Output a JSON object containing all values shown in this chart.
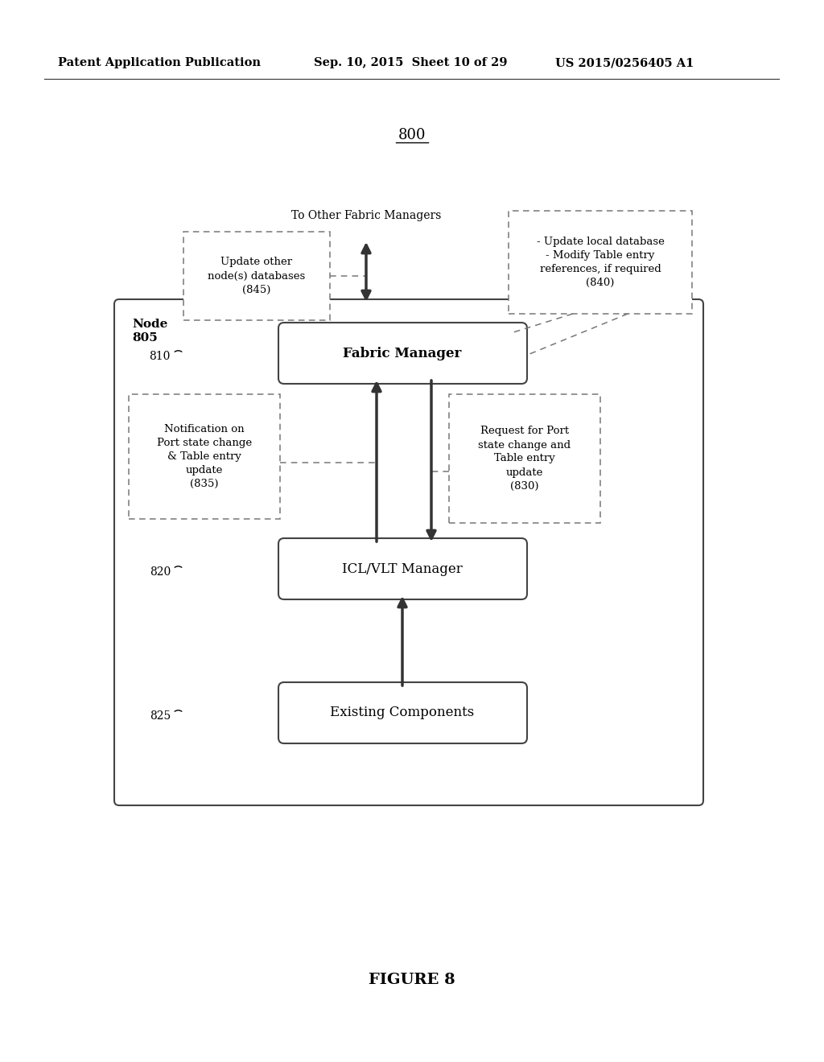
{
  "background_color": "#ffffff",
  "header_left": "Patent Application Publication",
  "header_mid": "Sep. 10, 2015  Sheet 10 of 29",
  "header_right": "US 2015/0256405 A1",
  "figure_label": "800",
  "figure_caption": "FIGURE 8",
  "node_label": "Node\n805",
  "fabric_manager_label": "Fabric Manager",
  "fabric_manager_id": "810",
  "icl_vlt_label": "ICL/VLT Manager",
  "icl_vlt_id": "820",
  "existing_label": "Existing Components",
  "existing_id": "825",
  "update_other_label": "Update other\nnode(s) databases\n(845)",
  "to_other_label": "To Other Fabric Managers",
  "update_local_label": "- Update local database\n- Modify Table entry\nreferences, if required\n(840)",
  "notification_label": "Notification on\nPort state change\n& Table entry\nupdate\n(835)",
  "request_label": "Request for Port\nstate change and\nTable entry\nupdate\n(830)"
}
